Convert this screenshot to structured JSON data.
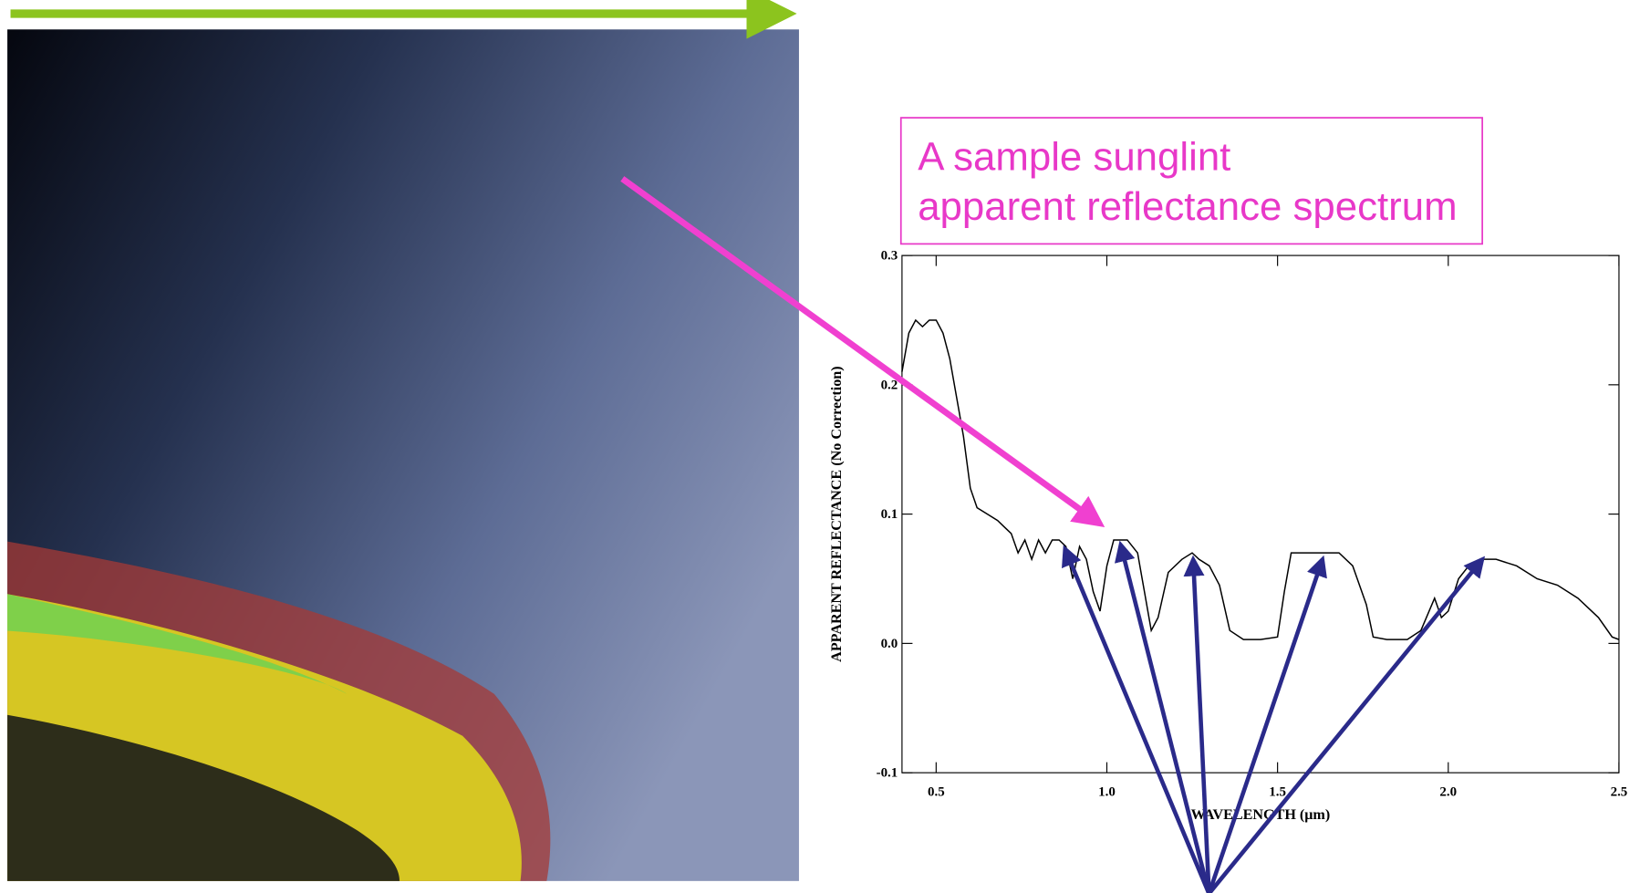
{
  "chart_data": {
    "type": "line",
    "annotation": "A sample sunglint apparent reflectance spectrum",
    "x_label": "WAVELENGTH (μm)",
    "y_label": "APPARENT REFLECTANCE (No Correction)",
    "xlim": [
      0.4,
      2.5
    ],
    "ylim": [
      -0.1,
      0.3
    ],
    "xticks": [
      0.5,
      {
        "value": 1,
        "label": "1.0"
      },
      1.5,
      {
        "value": 2,
        "label": "2.0"
      },
      2.5
    ],
    "yticks": [
      -0.1,
      {
        "value": 0,
        "label": "0.0"
      },
      0.1,
      0.2,
      0.3
    ],
    "series": [
      {
        "color": "#000000",
        "x": [
          0.4,
          0.42,
          0.44,
          0.46,
          0.48,
          0.5,
          0.52,
          0.54,
          0.56,
          0.58,
          0.6,
          0.62,
          0.65,
          0.68,
          0.7,
          0.72,
          0.74,
          0.76,
          0.78,
          0.8,
          0.82,
          0.84,
          0.86,
          0.88,
          0.9,
          0.92,
          0.94,
          0.96,
          0.98,
          1.0,
          1.02,
          1.06,
          1.09,
          1.11,
          1.13,
          1.15,
          1.18,
          1.22,
          1.25,
          1.27,
          1.3,
          1.33,
          1.36,
          1.4,
          1.45,
          1.5,
          1.52,
          1.54,
          1.58,
          1.62,
          1.68,
          1.72,
          1.76,
          1.78,
          1.82,
          1.88,
          1.92,
          1.96,
          1.98,
          2.0,
          2.03,
          2.06,
          2.1,
          2.14,
          2.2,
          2.26,
          2.32,
          2.38,
          2.44,
          2.48,
          2.5
        ],
        "values": [
          0.21,
          0.24,
          0.25,
          0.245,
          0.25,
          0.25,
          0.24,
          0.22,
          0.19,
          0.16,
          0.12,
          0.105,
          0.1,
          0.095,
          0.09,
          0.085,
          0.07,
          0.08,
          0.065,
          0.08,
          0.07,
          0.08,
          0.08,
          0.075,
          0.05,
          0.075,
          0.065,
          0.04,
          0.025,
          0.06,
          0.08,
          0.08,
          0.07,
          0.04,
          0.01,
          0.02,
          0.055,
          0.065,
          0.07,
          0.065,
          0.06,
          0.045,
          0.01,
          0.003,
          0.003,
          0.005,
          0.04,
          0.07,
          0.07,
          0.07,
          0.07,
          0.06,
          0.03,
          0.005,
          0.003,
          0.003,
          0.01,
          0.035,
          0.02,
          0.025,
          0.05,
          0.06,
          0.065,
          0.065,
          0.06,
          0.05,
          0.045,
          0.035,
          0.02,
          0.005,
          0.003
        ]
      }
    ]
  }
}
